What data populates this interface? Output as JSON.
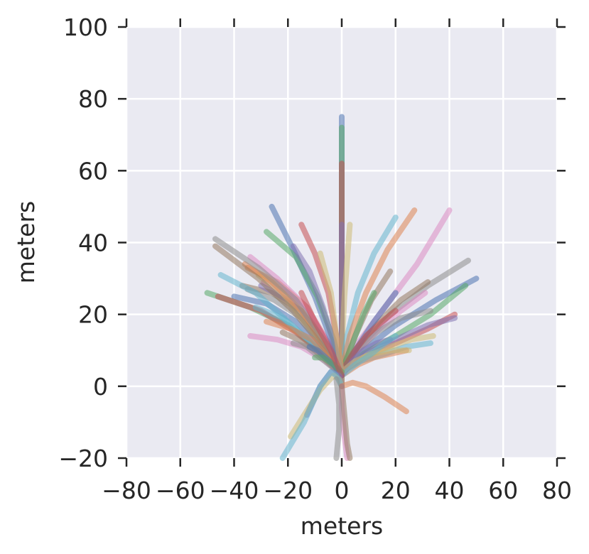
{
  "chart_data": {
    "type": "line",
    "title": "",
    "xlabel": "meters",
    "ylabel": "meters",
    "xlim": [
      -80,
      80
    ],
    "ylim": [
      -20,
      100
    ],
    "xticks": [
      -80,
      -60,
      -40,
      -20,
      0,
      20,
      40,
      60,
      80
    ],
    "yticks": [
      -20,
      0,
      20,
      40,
      60,
      80,
      100
    ],
    "xtick_labels": [
      "−80",
      "−60",
      "−40",
      "−20",
      "0",
      "20",
      "40",
      "60",
      "80"
    ],
    "ytick_labels": [
      "−20",
      "0",
      "20",
      "40",
      "60",
      "80",
      "100"
    ],
    "grid": true,
    "legend": "none",
    "background_color": "#eaeaf2",
    "palette": [
      "#4c72b0",
      "#55a868",
      "#c44e52",
      "#8172b2",
      "#ccb974",
      "#64b5cd",
      "#dd8452",
      "#da8bc3",
      "#937860",
      "#8c8c8c"
    ],
    "series": [
      {
        "x": [
          0,
          0,
          0,
          0,
          0
        ],
        "y": [
          0,
          20,
          40,
          60,
          75
        ]
      },
      {
        "x": [
          0,
          0,
          0,
          0,
          0
        ],
        "y": [
          0,
          15,
          35,
          55,
          72
        ]
      },
      {
        "x": [
          0,
          0,
          0,
          0,
          0
        ],
        "y": [
          0,
          20,
          40,
          55,
          62
        ]
      },
      {
        "x": [
          0,
          0,
          0,
          0
        ],
        "y": [
          0,
          15,
          30,
          45
        ]
      },
      {
        "x": [
          0,
          0,
          1,
          3
        ],
        "y": [
          0,
          10,
          25,
          45
        ]
      },
      {
        "x": [
          0,
          2,
          6,
          12,
          20
        ],
        "y": [
          4,
          14,
          26,
          37,
          47
        ]
      },
      {
        "x": [
          0,
          3,
          9,
          17,
          27
        ],
        "y": [
          4,
          14,
          26,
          38,
          49
        ]
      },
      {
        "x": [
          0,
          6,
          16,
          28,
          40
        ],
        "y": [
          4,
          12,
          22,
          34,
          49
        ]
      },
      {
        "x": [
          0,
          5,
          11,
          18
        ],
        "y": [
          4,
          14,
          24,
          32
        ]
      },
      {
        "x": [
          0,
          8,
          18,
          32,
          47
        ],
        "y": [
          4,
          12,
          20,
          28,
          35
        ]
      },
      {
        "x": [
          0,
          8,
          20,
          35,
          50
        ],
        "y": [
          4,
          10,
          17,
          24,
          30
        ]
      },
      {
        "x": [
          0,
          8,
          20,
          33,
          46
        ],
        "y": [
          4,
          9,
          14,
          20,
          28
        ]
      },
      {
        "x": [
          0,
          8,
          20,
          32,
          42
        ],
        "y": [
          4,
          8,
          12,
          16,
          20
        ]
      },
      {
        "x": [
          0,
          9,
          20,
          32,
          42
        ],
        "y": [
          4,
          9,
          13,
          17,
          19
        ]
      },
      {
        "x": [
          0,
          8,
          18,
          26,
          34
        ],
        "y": [
          4,
          8,
          11,
          13,
          14
        ]
      },
      {
        "x": [
          0,
          7,
          16,
          24,
          33
        ],
        "y": [
          4,
          7,
          9,
          11,
          12
        ]
      },
      {
        "x": [
          0,
          6,
          12,
          18,
          24
        ],
        "y": [
          3,
          6,
          8,
          9,
          10
        ]
      },
      {
        "x": [
          0,
          6,
          14,
          22,
          31
        ],
        "y": [
          4,
          10,
          16,
          21,
          26
        ]
      },
      {
        "x": [
          0,
          6,
          14,
          22,
          32
        ],
        "y": [
          4,
          11,
          18,
          24,
          29
        ]
      },
      {
        "x": [
          0,
          6,
          13,
          22,
          33
        ],
        "y": [
          4,
          10,
          15,
          19,
          21
        ]
      },
      {
        "x": [
          0,
          5,
          12,
          20
        ],
        "y": [
          4,
          10,
          18,
          26
        ]
      },
      {
        "x": [
          0,
          4,
          8,
          12
        ],
        "y": [
          4,
          12,
          20,
          26
        ]
      },
      {
        "x": [
          0,
          4,
          9,
          15,
          20
        ],
        "y": [
          4,
          9,
          14,
          18,
          21
        ]
      },
      {
        "x": [
          0,
          4,
          8,
          13,
          18
        ],
        "y": [
          3,
          7,
          10,
          12,
          13
        ]
      },
      {
        "x": [
          0,
          5,
          11,
          18,
          25
        ],
        "y": [
          4,
          7,
          9,
          10,
          10
        ]
      },
      {
        "x": [
          0,
          5,
          11,
          16,
          20
        ],
        "y": [
          3,
          6,
          9,
          12,
          14
        ]
      },
      {
        "x": [
          0,
          -5,
          -13,
          -24,
          -35
        ],
        "y": [
          4,
          12,
          22,
          29,
          33
        ]
      },
      {
        "x": [
          0,
          -5,
          -12,
          -20,
          -29
        ],
        "y": [
          4,
          12,
          20,
          26,
          29
        ]
      },
      {
        "x": [
          0,
          -6,
          -15,
          -26,
          -37
        ],
        "y": [
          4,
          12,
          21,
          26,
          28
        ]
      },
      {
        "x": [
          0,
          -6,
          -15,
          -25,
          -35
        ],
        "y": [
          4,
          11,
          19,
          24,
          27
        ]
      },
      {
        "x": [
          0,
          -7,
          -17,
          -28,
          -40
        ],
        "y": [
          4,
          10,
          18,
          23,
          25
        ]
      },
      {
        "x": [
          0,
          -8,
          -20,
          -34,
          -50
        ],
        "y": [
          4,
          10,
          17,
          22,
          26
        ]
      },
      {
        "x": [
          0,
          -7,
          -17,
          -30,
          -46
        ],
        "y": [
          4,
          9,
          15,
          21,
          25
        ]
      },
      {
        "x": [
          0,
          -5,
          -12,
          -20,
          -30
        ],
        "y": [
          4,
          11,
          18,
          24,
          28
        ]
      },
      {
        "x": [
          0,
          -6,
          -14,
          -22,
          -31
        ],
        "y": [
          4,
          11,
          18,
          26,
          31
        ]
      },
      {
        "x": [
          0,
          -8,
          -20,
          -32,
          -45
        ],
        "y": [
          4,
          10,
          18,
          26,
          31
        ]
      },
      {
        "x": [
          0,
          -6,
          -15,
          -26,
          -36
        ],
        "y": [
          4,
          11,
          21,
          29,
          34
        ]
      },
      {
        "x": [
          0,
          -5,
          -13,
          -24,
          -34
        ],
        "y": [
          4,
          12,
          22,
          30,
          36
        ]
      },
      {
        "x": [
          0,
          -7,
          -18,
          -31,
          -47
        ],
        "y": [
          4,
          11,
          21,
          30,
          39
        ]
      },
      {
        "x": [
          0,
          -6,
          -17,
          -31,
          -47
        ],
        "y": [
          4,
          12,
          24,
          33,
          41
        ]
      },
      {
        "x": [
          0,
          -4,
          -10,
          -18,
          -26
        ],
        "y": [
          4,
          13,
          25,
          38,
          50
        ]
      },
      {
        "x": [
          0,
          -3,
          -9,
          -17,
          -28
        ],
        "y": [
          4,
          13,
          25,
          36,
          43
        ]
      },
      {
        "x": [
          0,
          -2,
          -5,
          -10,
          -15
        ],
        "y": [
          4,
          14,
          26,
          37,
          45
        ]
      },
      {
        "x": [
          0,
          -3,
          -7,
          -12,
          -18
        ],
        "y": [
          4,
          12,
          22,
          32,
          39
        ]
      },
      {
        "x": [
          0,
          -2,
          -4,
          -8
        ],
        "y": [
          4,
          14,
          26,
          37
        ]
      },
      {
        "x": [
          0,
          -6,
          -14,
          -22,
          -32
        ],
        "y": [
          3,
          8,
          14,
          19,
          22
        ]
      },
      {
        "x": [
          0,
          -5,
          -11,
          -19,
          -28
        ],
        "y": [
          3,
          8,
          13,
          16,
          18
        ]
      },
      {
        "x": [
          0,
          -6,
          -15,
          -24,
          -34
        ],
        "y": [
          3,
          7,
          11,
          13,
          14
        ]
      },
      {
        "x": [
          0,
          -4,
          -10,
          -16,
          -22
        ],
        "y": [
          3,
          6,
          10,
          13,
          15
        ]
      },
      {
        "x": [
          0,
          -3,
          -8,
          -13,
          -18
        ],
        "y": [
          3,
          5,
          8,
          11,
          12
        ]
      },
      {
        "x": [
          0,
          -3,
          -6,
          -9,
          -12
        ],
        "y": [
          3,
          6,
          8,
          10,
          11
        ]
      },
      {
        "x": [
          0,
          -3,
          -7,
          -10
        ],
        "y": [
          4,
          6,
          8,
          8
        ]
      },
      {
        "x": [
          0,
          -4,
          -10,
          -15
        ],
        "y": [
          3,
          10,
          18,
          26
        ]
      },
      {
        "x": [
          0,
          -1,
          -4,
          -8,
          -13
        ],
        "y": [
          0,
          3,
          4,
          0,
          -8
        ]
      },
      {
        "x": [
          0,
          -1,
          -3,
          -8,
          -14,
          -19
        ],
        "y": [
          0,
          2,
          3,
          -1,
          -8,
          -14
        ]
      },
      {
        "x": [
          0,
          -2,
          -4,
          -8,
          -14,
          -22
        ],
        "y": [
          0,
          3,
          4,
          0,
          -10,
          -20
        ]
      },
      {
        "x": [
          0,
          4,
          9,
          16,
          24
        ],
        "y": [
          0,
          1,
          0,
          -3,
          -7
        ]
      },
      {
        "x": [
          0,
          0,
          1,
          2
        ],
        "y": [
          0,
          -6,
          -14,
          -20
        ]
      },
      {
        "x": [
          0,
          1,
          2,
          3
        ],
        "y": [
          0,
          -8,
          -16,
          -20
        ]
      },
      {
        "x": [
          -2,
          -1,
          -1,
          -2
        ],
        "y": [
          2,
          -5,
          -12,
          -20
        ]
      }
    ]
  }
}
